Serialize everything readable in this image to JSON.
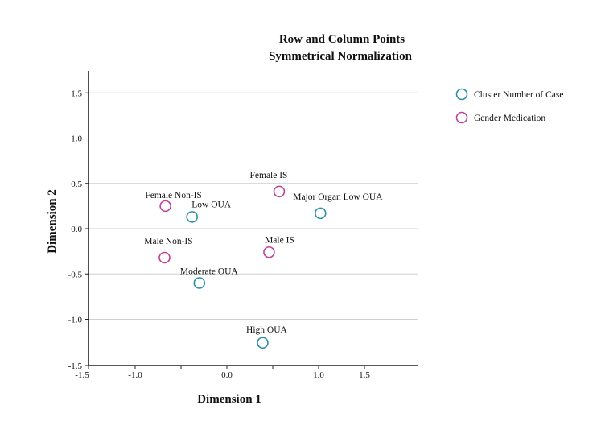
{
  "chart_data": {
    "type": "scatter",
    "title": "Row and Column Points",
    "subtitle": "Symmetrical Normalization",
    "xlabel": "Dimension 1",
    "ylabel": "Dimension 2",
    "xlim": [
      -1.5,
      2.1
    ],
    "ylim": [
      -1.5,
      1.75
    ],
    "xticks": [
      -1.5,
      -1.0,
      0.0,
      1.0,
      1.5
    ],
    "xtick_labels": [
      "-1.5",
      "-1.0",
      "0.0",
      "1.0",
      "1.5"
    ],
    "xtick_positions": [
      -1.5,
      -1.0,
      -0.5,
      0.0,
      0.5,
      1.0,
      1.5
    ],
    "yticks": [
      1.5,
      1.0,
      0.5,
      0.0,
      -0.5,
      -1.0,
      -1.5
    ],
    "ytick_labels": [
      "1.5",
      "1.0",
      "0.5",
      "0.0",
      "-0.5",
      "-1.0",
      "-1.5"
    ],
    "grid": "horizontal",
    "legend_position": "top-right",
    "series": [
      {
        "name": "Cluster Number of Case",
        "color": "#2a8fa8",
        "marker": "open-circle",
        "points": [
          {
            "label": "Low OUA",
            "x": -0.38,
            "y": 0.13
          },
          {
            "label": "Major Organ Low OUA",
            "x": 1.02,
            "y": 0.17
          },
          {
            "label": "Moderate OUA",
            "x": -0.3,
            "y": -0.6
          },
          {
            "label": "High OUA",
            "x": 0.39,
            "y": -1.26
          }
        ]
      },
      {
        "name": "Gender Medication",
        "color": "#c0409a",
        "marker": "open-circle",
        "points": [
          {
            "label": "Female Non-IS",
            "x": -0.67,
            "y": 0.25
          },
          {
            "label": "Female IS",
            "x": 0.57,
            "y": 0.41
          },
          {
            "label": "Male Non-IS",
            "x": -0.68,
            "y": -0.32
          },
          {
            "label": "Male IS",
            "x": 0.46,
            "y": -0.26
          }
        ]
      }
    ]
  }
}
